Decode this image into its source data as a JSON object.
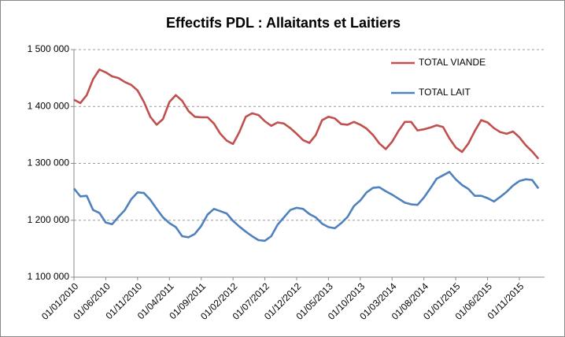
{
  "chart_data": {
    "type": "line",
    "title": "Effectifs PDL : Allaitants et Laitiers",
    "categories": [
      "01/01/2010",
      null,
      null,
      null,
      null,
      "01/06/2010",
      null,
      null,
      null,
      null,
      "01/11/2010",
      null,
      null,
      null,
      null,
      "01/04/2011",
      null,
      null,
      null,
      null,
      "01/09/2011",
      null,
      null,
      null,
      null,
      "01/02/2012",
      null,
      null,
      null,
      null,
      "01/07/2012",
      null,
      null,
      null,
      null,
      "01/12/2012",
      null,
      null,
      null,
      null,
      "01/05/2013",
      null,
      null,
      null,
      null,
      "01/10/2013",
      null,
      null,
      null,
      null,
      "01/03/2014",
      null,
      null,
      null,
      null,
      "01/08/2014",
      null,
      null,
      null,
      null,
      "01/01/2015",
      null,
      null,
      null,
      null,
      "01/06/2015",
      null,
      null,
      null,
      null,
      "01/11/2015",
      null,
      null,
      null
    ],
    "series": [
      {
        "name": "TOTAL VIANDE",
        "color": "#c0504d",
        "values": [
          1412000,
          1406000,
          1420000,
          1448000,
          1465000,
          1460000,
          1453000,
          1450000,
          1443000,
          1438000,
          1428000,
          1408000,
          1382000,
          1368000,
          1378000,
          1408000,
          1420000,
          1410000,
          1392000,
          1382000,
          1381000,
          1381000,
          1370000,
          1352000,
          1340000,
          1334000,
          1355000,
          1382000,
          1388000,
          1385000,
          1374000,
          1366000,
          1372000,
          1370000,
          1362000,
          1352000,
          1341000,
          1336000,
          1350000,
          1376000,
          1382000,
          1379000,
          1369000,
          1368000,
          1373000,
          1368000,
          1361000,
          1350000,
          1335000,
          1325000,
          1338000,
          1357000,
          1373000,
          1373000,
          1358000,
          1360000,
          1363000,
          1367000,
          1364000,
          1344000,
          1328000,
          1320000,
          1335000,
          1357000,
          1376000,
          1372000,
          1362000,
          1355000,
          1352000,
          1356000,
          1346000,
          1332000,
          1321000,
          1308000
        ]
      },
      {
        "name": "TOTAL LAIT",
        "color": "#4f81bd",
        "values": [
          1256000,
          1242000,
          1243000,
          1218000,
          1213000,
          1196000,
          1193000,
          1206000,
          1218000,
          1237000,
          1249000,
          1248000,
          1236000,
          1220000,
          1205000,
          1195000,
          1188000,
          1172000,
          1170000,
          1176000,
          1190000,
          1210000,
          1220000,
          1216000,
          1212000,
          1199000,
          1189000,
          1180000,
          1172000,
          1165000,
          1164000,
          1172000,
          1192000,
          1205000,
          1218000,
          1222000,
          1220000,
          1211000,
          1205000,
          1194000,
          1188000,
          1186000,
          1195000,
          1206000,
          1225000,
          1235000,
          1249000,
          1257000,
          1258000,
          1251000,
          1245000,
          1238000,
          1231000,
          1228000,
          1227000,
          1240000,
          1256000,
          1273000,
          1279000,
          1285000,
          1272000,
          1262000,
          1255000,
          1243000,
          1243000,
          1239000,
          1233000,
          1241000,
          1250000,
          1261000,
          1269000,
          1272000,
          1271000,
          1256000
        ]
      }
    ],
    "ylim": [
      1100000,
      1500000
    ],
    "yticks": [
      {
        "value": 1100000,
        "label": "1 100 000"
      },
      {
        "value": 1200000,
        "label": "1 200 000"
      },
      {
        "value": 1300000,
        "label": "1 300 000"
      },
      {
        "value": 1400000,
        "label": "1 400 000"
      },
      {
        "value": 1500000,
        "label": "1 500 000"
      }
    ],
    "grid": true
  }
}
